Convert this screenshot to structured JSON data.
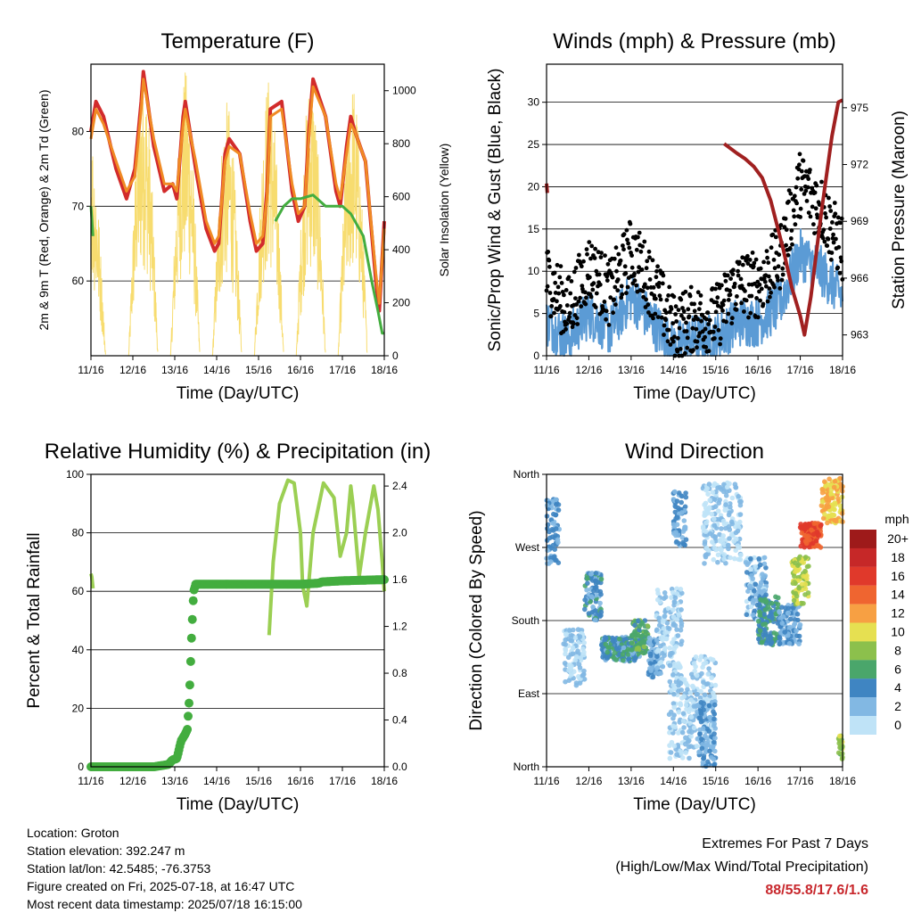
{
  "colors": {
    "temp2m": "#d22b2b",
    "temp9m": "#f08a24",
    "dewpoint": "#43ad3f",
    "solar": "#f7dc6f",
    "wind": "#5b9bd5",
    "gust": "#000000",
    "pressure": "#a02020",
    "rh": "#9bcf53",
    "precip": "#43ad3f"
  },
  "chart_data": [
    {
      "id": "temp",
      "type": "line",
      "title": "Temperature (F)",
      "xlabel": "Time (Day/UTC)",
      "ylabel": "2m & 9m T (Red, Orange) & 2m Td (Green)",
      "ylabel_right": "Solar Insolation (Yellow)",
      "xlim": [
        0,
        7
      ],
      "ylim": [
        50,
        89
      ],
      "ylim_right": [
        0,
        1100
      ],
      "x_ticks": [
        "11/16",
        "12/16",
        "13/16",
        "14/16",
        "15/16",
        "16/16",
        "17/16",
        "18/16"
      ],
      "y_ticks": [
        60,
        70,
        80
      ],
      "y_ticks_right": [
        0,
        200,
        400,
        600,
        800,
        1000
      ],
      "grid": true,
      "series": [
        {
          "key": "temp2m",
          "x": [
            0,
            0.12,
            0.3,
            0.6,
            0.85,
            1.05,
            1.2,
            1.25,
            1.5,
            1.75,
            1.95,
            2.05,
            2.2,
            2.25,
            2.5,
            2.75,
            2.95,
            3.05,
            3.2,
            3.3,
            3.55,
            3.8,
            3.95,
            4.1,
            4.2,
            4.28,
            4.55,
            4.8,
            4.95,
            5.1,
            5.2,
            5.3,
            5.6,
            5.85,
            5.95,
            6.1,
            6.2,
            6.3,
            6.55,
            6.8,
            6.88,
            7.0
          ],
          "y": [
            80,
            84,
            82,
            75,
            71,
            75,
            84,
            88,
            78,
            72,
            73,
            71,
            82,
            84,
            75,
            67,
            64,
            65,
            77,
            79,
            77,
            68,
            64,
            65,
            72,
            83,
            84,
            72,
            68,
            70,
            80,
            87,
            82,
            72,
            70,
            78,
            82,
            80,
            76,
            60,
            56,
            68
          ]
        },
        {
          "key": "temp9m",
          "x": [
            0,
            0.12,
            0.3,
            0.6,
            0.85,
            1.05,
            1.2,
            1.25,
            1.5,
            1.75,
            1.95,
            2.05,
            2.2,
            2.25,
            2.5,
            2.75,
            2.95,
            3.05,
            3.2,
            3.3,
            3.55,
            3.8,
            3.95,
            4.1,
            4.2,
            4.28,
            4.55,
            4.8,
            4.95,
            5.1,
            5.2,
            5.3,
            5.6,
            5.85,
            5.95,
            6.1,
            6.2,
            6.3,
            6.55,
            6.8,
            6.88,
            7.0
          ],
          "y": [
            79,
            83,
            81,
            76,
            72,
            74,
            83,
            87,
            79,
            73,
            73,
            72,
            81,
            83,
            76,
            68,
            65,
            66,
            76,
            78,
            77,
            69,
            65,
            66,
            71,
            82,
            83,
            73,
            69,
            70,
            79,
            86,
            82,
            73,
            71,
            77,
            81,
            80,
            76,
            61,
            57,
            67
          ]
        },
        {
          "key": "dewpoint",
          "x": [
            0,
            0.05,
            4.2,
            4.4,
            4.6,
            4.8,
            5.0,
            5.3,
            5.6,
            5.8,
            6.0,
            6.2,
            6.5,
            6.7,
            6.85,
            6.95,
            7.0
          ],
          "y": [
            70,
            66,
            null,
            68,
            70,
            71,
            71,
            71.5,
            70,
            70,
            70,
            69,
            66,
            60,
            56,
            53,
            53
          ]
        }
      ],
      "solar": {
        "peaks": [
          1.25,
          2.25,
          3.25,
          4.25,
          5.25,
          6.25
        ],
        "peak_values": [
          1080,
          1080,
          960,
          1060,
          1060,
          1040
        ]
      }
    },
    {
      "id": "winds",
      "type": "scatter",
      "title": "Winds (mph) & Pressure (mb)",
      "xlabel": "Time (Day/UTC)",
      "ylabel": "Sonic/Prop Wind & Gust (Blue, Black)",
      "ylabel_right": "Station Pressure (Maroon)",
      "xlim": [
        0,
        7
      ],
      "ylim": [
        0,
        34.5
      ],
      "ylim_right": [
        961.9,
        977.3
      ],
      "x_ticks": [
        "11/16",
        "12/16",
        "13/16",
        "14/16",
        "15/16",
        "16/16",
        "17/16",
        "18/16"
      ],
      "y_ticks": [
        0,
        5,
        10,
        15,
        20,
        25,
        30
      ],
      "y_ticks_right": [
        963,
        966,
        969,
        972,
        975
      ],
      "grid": true,
      "wind_level": {
        "x": [
          0,
          0.5,
          1,
          1.5,
          2,
          2.5,
          3,
          3.5,
          4,
          4.5,
          5,
          5.5,
          6,
          6.5,
          7
        ],
        "y": [
          4,
          2,
          5,
          3,
          7,
          4,
          1,
          2,
          2,
          4,
          4,
          6,
          12,
          10,
          7
        ]
      },
      "gust_level": {
        "x": [
          0,
          0.5,
          1,
          1.5,
          2,
          2.5,
          3,
          3.5,
          4,
          4.5,
          5,
          5.5,
          6,
          6.5,
          7
        ],
        "y": [
          9,
          5,
          10,
          7,
          12,
          8,
          3,
          4,
          4,
          8,
          8,
          11,
          20,
          17,
          12
        ]
      },
      "pressure": {
        "x": [
          0,
          0.02,
          4.05,
          4.2,
          4.5,
          4.7,
          4.9,
          5.1,
          5.3,
          5.6,
          5.8,
          6.0,
          6.1,
          6.25,
          6.5,
          6.75,
          6.9,
          7.0
        ],
        "y": [
          971,
          970.5,
          null,
          973.1,
          972.6,
          972.3,
          971.9,
          971.3,
          970.1,
          967.5,
          965.5,
          964.0,
          963.0,
          965.0,
          969.5,
          973.5,
          975.3,
          975.4
        ]
      }
    },
    {
      "id": "rh",
      "type": "line",
      "title": "Relative Humidity (%) & Precipitation (in)",
      "xlabel": "Time (Day/UTC)",
      "ylabel": "Percent & Total Rainfall",
      "xlim": [
        0,
        7
      ],
      "ylim": [
        0,
        100
      ],
      "ylim_right": [
        0,
        2.5
      ],
      "x_ticks": [
        "11/16",
        "12/16",
        "13/16",
        "14/16",
        "15/16",
        "16/16",
        "17/16",
        "18/16"
      ],
      "y_ticks": [
        0,
        20,
        40,
        60,
        80,
        100
      ],
      "y_ticks_right": [
        "0.0",
        "0.4",
        "0.8",
        "1.2",
        "1.6",
        "2.0",
        "2.4"
      ],
      "grid": true,
      "series": [
        {
          "key": "rh",
          "x": [
            0,
            0.02,
            0.05,
            4.2,
            4.25,
            4.35,
            4.5,
            4.7,
            4.85,
            5.0,
            5.05,
            5.15,
            5.3,
            5.55,
            5.8,
            5.95,
            6.1,
            6.2,
            6.25,
            6.4,
            6.55,
            6.75,
            6.85,
            6.95,
            7.0
          ],
          "y": [
            66,
            65,
            61,
            null,
            45,
            70,
            90,
            98,
            97,
            80,
            62,
            55,
            80,
            97,
            92,
            72,
            80,
            96,
            90,
            65,
            80,
            96,
            88,
            70,
            60
          ]
        },
        {
          "key": "precip",
          "x": [
            0,
            1.5,
            1.85,
            1.95,
            2.05,
            2.15,
            2.25,
            2.3,
            2.35,
            2.4,
            2.45,
            2.5,
            3.0,
            4.0,
            5.0,
            5.45,
            5.5,
            6.0,
            7.0
          ],
          "y": [
            0,
            0,
            0.02,
            0.06,
            0.07,
            0.22,
            0.28,
            0.32,
            0.6,
            1.1,
            1.5,
            1.56,
            1.56,
            1.56,
            1.56,
            1.57,
            1.58,
            1.59,
            1.6
          ]
        }
      ]
    },
    {
      "id": "wdir",
      "type": "scatter",
      "title": "Wind Direction",
      "xlabel": "Time (Day/UTC)",
      "ylabel": "Direction (Colored By Speed)",
      "xlim": [
        0,
        7
      ],
      "ylim": [
        0,
        360
      ],
      "x_ticks": [
        "11/16",
        "12/16",
        "13/16",
        "14/16",
        "15/16",
        "16/16",
        "17/16",
        "18/16"
      ],
      "y_ticks": [
        "North",
        "East",
        "South",
        "West",
        "North"
      ],
      "grid": true,
      "clusters": [
        {
          "x": [
            0.0,
            0.3
          ],
          "dir": [
            250,
            330
          ],
          "spd": 3
        },
        {
          "x": [
            0.4,
            0.9
          ],
          "dir": [
            100,
            170
          ],
          "spd": 1
        },
        {
          "x": [
            0.9,
            1.3
          ],
          "dir": [
            180,
            240
          ],
          "spd": 4
        },
        {
          "x": [
            1.3,
            2.2
          ],
          "dir": [
            130,
            160
          ],
          "spd": 4
        },
        {
          "x": [
            2.0,
            2.4
          ],
          "dir": [
            140,
            180
          ],
          "spd": 6
        },
        {
          "x": [
            2.4,
            2.7
          ],
          "dir": [
            110,
            160
          ],
          "spd": 3
        },
        {
          "x": [
            2.6,
            3.2
          ],
          "dir": [
            120,
            220
          ],
          "spd": 1
        },
        {
          "x": [
            2.9,
            3.4
          ],
          "dir": [
            10,
            120
          ],
          "spd": 1
        },
        {
          "x": [
            3.0,
            3.3
          ],
          "dir": [
            270,
            340
          ],
          "spd": 3
        },
        {
          "x": [
            3.4,
            4.0
          ],
          "dir": [
            20,
            140
          ],
          "spd": 1
        },
        {
          "x": [
            3.7,
            4.6
          ],
          "dir": [
            250,
            350
          ],
          "spd": 1
        },
        {
          "x": [
            3.6,
            4.0
          ],
          "dir": [
            0,
            80
          ],
          "spd": 3
        },
        {
          "x": [
            4.7,
            5.2
          ],
          "dir": [
            180,
            260
          ],
          "spd": 2
        },
        {
          "x": [
            5.0,
            5.5
          ],
          "dir": [
            150,
            210
          ],
          "spd": 5
        },
        {
          "x": [
            5.5,
            6.0
          ],
          "dir": [
            150,
            200
          ],
          "spd": 3
        },
        {
          "x": [
            5.8,
            6.2
          ],
          "dir": [
            200,
            260
          ],
          "spd": 9
        },
        {
          "x": [
            6.0,
            6.5
          ],
          "dir": [
            270,
            300
          ],
          "spd": 15
        },
        {
          "x": [
            6.5,
            7.0
          ],
          "dir": [
            300,
            355
          ],
          "spd": 11
        },
        {
          "x": [
            6.9,
            7.0
          ],
          "dir": [
            5,
            40
          ],
          "spd": 8
        }
      ],
      "legend": {
        "title": "mph",
        "labels": [
          "20+",
          "18",
          "16",
          "14",
          "12",
          "10",
          "8",
          "6",
          "4",
          "2",
          "0"
        ],
        "colors": [
          "#9e1a1a",
          "#c62828",
          "#e0392b",
          "#ef6530",
          "#f7a043",
          "#e6e051",
          "#8cc04c",
          "#4aa66b",
          "#3f85c2",
          "#82b8e3",
          "#bfe3f7"
        ]
      }
    }
  ],
  "info": {
    "location": "Location: Groton",
    "elevation": "Station elevation: 392.247 m",
    "latlon": "Station lat/lon: 42.5485; -76.3753",
    "created": "Figure created on Fri, 2025-07-18, at 16:47 UTC",
    "recent": "Most recent data timestamp: 2025/07/18 16:15:00"
  },
  "extremes": {
    "title": "Extremes For Past 7 Days",
    "subtitle": "(High/Low/Max Wind/Total Precipitation)",
    "values": "88/55.8/17.6/1.6"
  }
}
